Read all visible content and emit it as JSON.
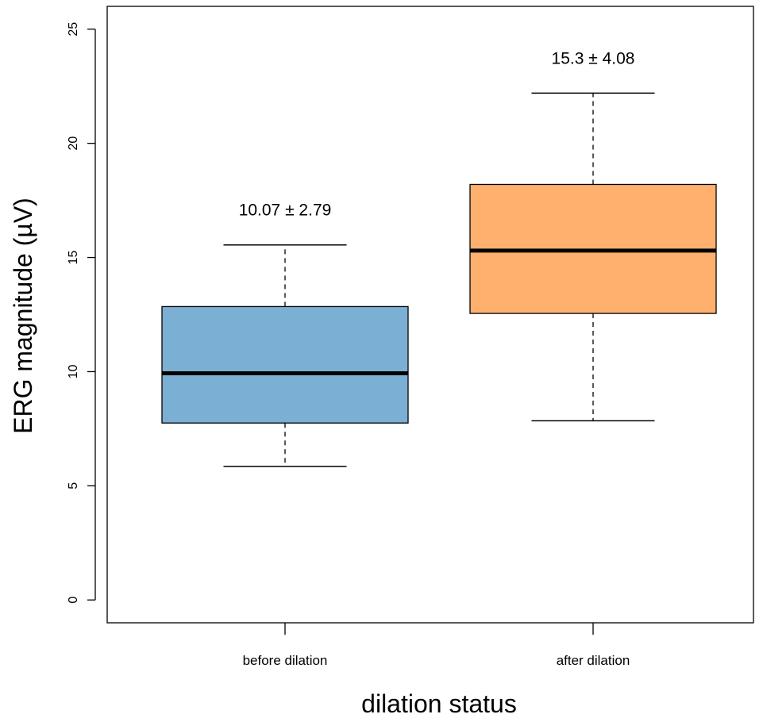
{
  "chart_data": {
    "type": "box",
    "title": "",
    "xlabel": "dilation status",
    "ylabel": "ERG magnitude (µV)",
    "ylim": [
      -1,
      26
    ],
    "yticks": [
      0,
      5,
      10,
      15,
      20,
      25
    ],
    "categories": [
      "before dilation",
      "after dilation"
    ],
    "boxes": [
      {
        "category": "before dilation",
        "whisker_low": 5.85,
        "q1": 7.75,
        "median": 9.93,
        "q3": 12.85,
        "whisker_high": 15.55,
        "annotation": "10.07 ± 2.79",
        "color": "#7bafd4"
      },
      {
        "category": "after dilation",
        "whisker_low": 7.85,
        "q1": 12.55,
        "median": 15.3,
        "q3": 18.2,
        "whisker_high": 22.2,
        "annotation": "15.3 ± 4.08",
        "color": "#ffb06e"
      }
    ],
    "grid": false,
    "legend": "none"
  }
}
